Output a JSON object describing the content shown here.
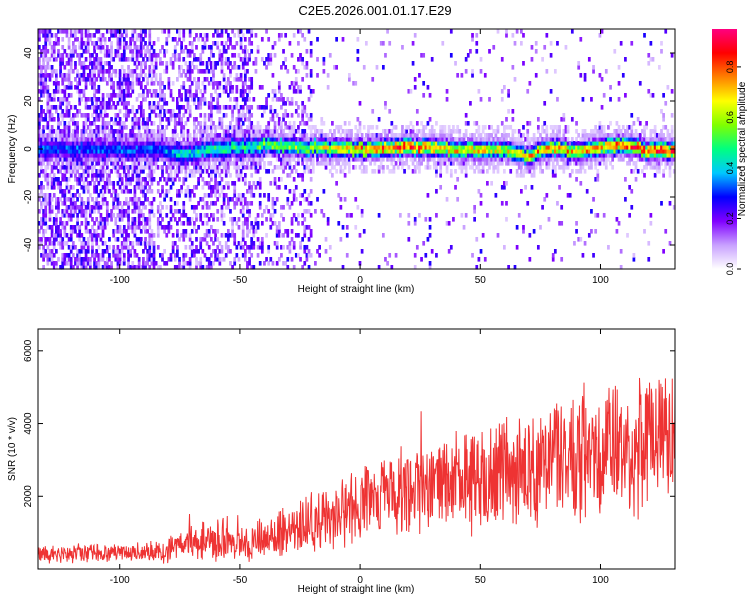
{
  "figure": {
    "title": "C2E5.2026.001.01.17.E29"
  },
  "colorbar": {
    "label": "Normalized spectral amplitude",
    "ticks": [
      "0.0",
      "0.2",
      "0.4",
      "0.6",
      "0.8"
    ],
    "range": [
      0,
      0.95
    ],
    "colors": [
      "#ffffff",
      "#c8a0ff",
      "#8000ff",
      "#0000ff",
      "#00c8ff",
      "#00ff80",
      "#80ff00",
      "#ffff00",
      "#ff8000",
      "#ff0000",
      "#ff0080"
    ]
  },
  "chart_data": [
    {
      "type": "heatmap",
      "title": "",
      "xlabel": "Height of straight line (km)",
      "ylabel": "Frequency (Hz)",
      "xlim": [
        -134,
        131
      ],
      "ylim": [
        -50,
        50
      ],
      "xticks": [
        -100,
        -50,
        0,
        50,
        100
      ],
      "yticks": [
        -40,
        -20,
        0,
        20,
        40
      ],
      "xtick_labels": [
        "-100",
        "-50",
        "0",
        "50",
        "100"
      ],
      "ytick_labels": [
        "-40",
        "-20",
        "0",
        "20",
        "40"
      ],
      "ridge": {
        "description_points_x": [
          -85,
          -75,
          -60,
          -45,
          -40,
          -20,
          0,
          20,
          40,
          60,
          70,
          80,
          90,
          100,
          110,
          120,
          131
        ],
        "frequency_hz": [
          0,
          -2,
          0,
          1,
          2,
          1,
          0,
          1,
          0,
          0,
          -3,
          1,
          -1,
          1,
          2,
          0,
          0
        ],
        "peak_amplitude": [
          0.35,
          0.45,
          0.5,
          0.5,
          0.6,
          0.65,
          0.8,
          0.9,
          0.75,
          0.7,
          0.75,
          0.8,
          0.75,
          0.8,
          0.85,
          0.9,
          0.95
        ]
      },
      "noise_region_x": [
        -134,
        -20
      ]
    },
    {
      "type": "line",
      "title": "",
      "xlabel": "Height of straight line (km)",
      "ylabel": "SNR (10 * v/v)",
      "xlim": [
        -134,
        131
      ],
      "ylim": [
        0,
        6600
      ],
      "xticks": [
        -100,
        -50,
        0,
        50,
        100
      ],
      "yticks": [
        2000,
        4000,
        6000
      ],
      "xtick_labels": [
        "-100",
        "-50",
        "0",
        "50",
        "100"
      ],
      "ytick_labels": [
        "2000",
        "4000",
        "6000"
      ],
      "series": [
        {
          "color": "#ee3333",
          "x": [
            -134,
            -110,
            -90,
            -80,
            -70,
            -60,
            -50,
            -40,
            -30,
            -20,
            -10,
            0,
            10,
            20,
            30,
            40,
            50,
            60,
            70,
            80,
            90,
            100,
            110,
            120,
            131
          ],
          "y": [
            400,
            450,
            450,
            550,
            700,
            800,
            700,
            800,
            1000,
            1300,
            1500,
            1700,
            2000,
            2200,
            2300,
            2400,
            2500,
            2600,
            2700,
            2900,
            3000,
            3100,
            3300,
            3500,
            3700
          ],
          "spread": [
            250,
            250,
            250,
            350,
            450,
            550,
            450,
            600,
            700,
            800,
            900,
            1000,
            1100,
            1200,
            1300,
            1300,
            1400,
            1500,
            1600,
            1700,
            1800,
            1800,
            1900,
            1900,
            1900
          ]
        }
      ]
    }
  ]
}
